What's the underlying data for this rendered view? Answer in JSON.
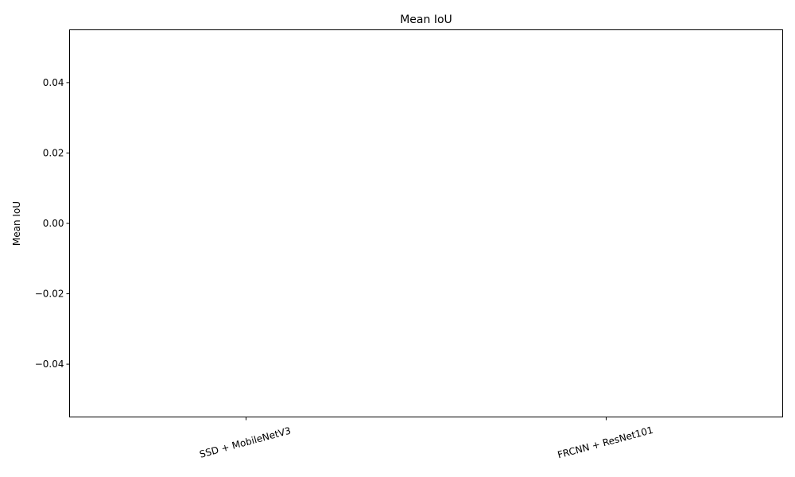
{
  "chart_data": {
    "type": "bar",
    "title": "Mean IoU",
    "xlabel": "",
    "ylabel": "Mean IoU",
    "categories": [
      "SSD + MobileNetV3",
      "FRCNN + ResNet101"
    ],
    "values": [
      0,
      0
    ],
    "ylim": [
      -0.055,
      0.055
    ],
    "yticks": [
      0.04,
      0.02,
      0.0,
      -0.02,
      -0.04
    ],
    "ytick_labels": [
      "0.04",
      "0.02",
      "0.00",
      "−0.02",
      "−0.04"
    ],
    "grid": false,
    "legend": "none",
    "bar_color": "#1f77b4"
  }
}
